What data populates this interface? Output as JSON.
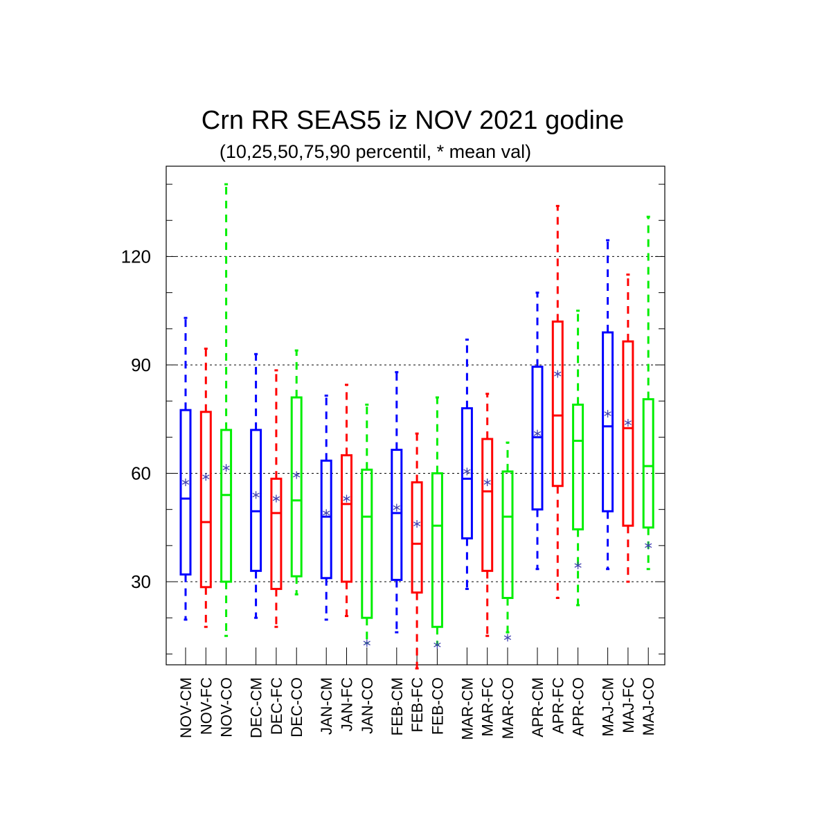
{
  "chart_data": {
    "type": "boxplot",
    "title": "Crn RR SEAS5 iz NOV 2021 godine",
    "subtitle": "(10,25,50,75,90 percentil, * mean val)",
    "xlabel": "",
    "ylabel": "",
    "ylim": [
      7,
      145
    ],
    "yticks": [
      30,
      60,
      90,
      120
    ],
    "grid": true,
    "colors": {
      "CM": "#0000ff",
      "FC": "#ff0000",
      "CO": "#00ee00",
      "mean": "#4040b0"
    },
    "categories": [
      "NOV-CM",
      "NOV-FC",
      "NOV-CO",
      "DEC-CM",
      "DEC-FC",
      "DEC-CO",
      "JAN-CM",
      "JAN-FC",
      "JAN-CO",
      "FEB-CM",
      "FEB-FC",
      "FEB-CO",
      "MAR-CM",
      "MAR-FC",
      "MAR-CO",
      "APR-CM",
      "APR-FC",
      "APR-CO",
      "MAJ-CM",
      "MAJ-FC",
      "MAJ-CO"
    ],
    "boxes": [
      {
        "label": "NOV-CM",
        "kind": "CM",
        "p10": 19.5,
        "p25": 32,
        "p50": 53,
        "p75": 77.5,
        "p90": 103,
        "mean": 57.5
      },
      {
        "label": "NOV-FC",
        "kind": "FC",
        "p10": 17.5,
        "p25": 28.5,
        "p50": 46.5,
        "p75": 77,
        "p90": 94.5,
        "mean": 59
      },
      {
        "label": "NOV-CO",
        "kind": "CO",
        "p10": 15,
        "p25": 30,
        "p50": 54,
        "p75": 72,
        "p90": 140,
        "mean": 61.5
      },
      {
        "label": "DEC-CM",
        "kind": "CM",
        "p10": 20,
        "p25": 33,
        "p50": 49.5,
        "p75": 72,
        "p90": 93,
        "mean": 54
      },
      {
        "label": "DEC-FC",
        "kind": "FC",
        "p10": 17.5,
        "p25": 28,
        "p50": 49,
        "p75": 58.5,
        "p90": 88.5,
        "mean": 53
      },
      {
        "label": "DEC-CO",
        "kind": "CO",
        "p10": 26.5,
        "p25": 31.5,
        "p50": 52.5,
        "p75": 81,
        "p90": 94,
        "mean": 59.5
      },
      {
        "label": "JAN-CM",
        "kind": "CM",
        "p10": 19.5,
        "p25": 31,
        "p50": 48,
        "p75": 63.5,
        "p90": 81.5,
        "mean": 49
      },
      {
        "label": "JAN-FC",
        "kind": "FC",
        "p10": 20.5,
        "p25": 30,
        "p50": 51.5,
        "p75": 65,
        "p90": 84.5,
        "mean": 53
      },
      {
        "label": "JAN-CO",
        "kind": "CO",
        "p10": 13,
        "p25": 20,
        "p50": 48,
        "p75": 61,
        "p90": 79,
        "mean": 13
      },
      {
        "label": "FEB-CM",
        "kind": "CM",
        "p10": 16,
        "p25": 30.5,
        "p50": 49,
        "p75": 66.5,
        "p90": 88,
        "mean": 50.5
      },
      {
        "label": "FEB-FC",
        "kind": "FC",
        "p10": 6,
        "p25": 27,
        "p50": 40.5,
        "p75": 57.5,
        "p90": 71,
        "mean": 46
      },
      {
        "label": "FEB-CO",
        "kind": "CO",
        "p10": 12.5,
        "p25": 17.5,
        "p50": 45.5,
        "p75": 60,
        "p90": 81,
        "mean": 12.5
      },
      {
        "label": "MAR-CM",
        "kind": "CM",
        "p10": 28,
        "p25": 42,
        "p50": 58.5,
        "p75": 78,
        "p90": 97,
        "mean": 60.5
      },
      {
        "label": "MAR-FC",
        "kind": "FC",
        "p10": 15,
        "p25": 33,
        "p50": 55,
        "p75": 69.5,
        "p90": 82,
        "mean": 57.5
      },
      {
        "label": "MAR-CO",
        "kind": "CO",
        "p10": 16,
        "p25": 25.5,
        "p50": 48,
        "p75": 60.5,
        "p90": 68.5,
        "mean": 14.5
      },
      {
        "label": "APR-CM",
        "kind": "CM",
        "p10": 33.5,
        "p25": 50,
        "p50": 70,
        "p75": 89.5,
        "p90": 110,
        "mean": 71
      },
      {
        "label": "APR-FC",
        "kind": "FC",
        "p10": 25.5,
        "p25": 56.5,
        "p50": 76,
        "p75": 102,
        "p90": 134,
        "mean": 87.5
      },
      {
        "label": "APR-CO",
        "kind": "CO",
        "p10": 23.5,
        "p25": 44.5,
        "p50": 69,
        "p75": 79,
        "p90": 105,
        "mean": 34.5
      },
      {
        "label": "MAJ-CM",
        "kind": "CM",
        "p10": 33.5,
        "p25": 49.5,
        "p50": 73,
        "p75": 99,
        "p90": 124.5,
        "mean": 76.5
      },
      {
        "label": "MAJ-FC",
        "kind": "FC",
        "p10": 30,
        "p25": 45.5,
        "p50": 72.5,
        "p75": 96.5,
        "p90": 115,
        "mean": 74
      },
      {
        "label": "MAJ-CO",
        "kind": "CO",
        "p10": 33.5,
        "p25": 45,
        "p50": 62,
        "p75": 80.5,
        "p90": 131,
        "mean": 40
      }
    ]
  }
}
